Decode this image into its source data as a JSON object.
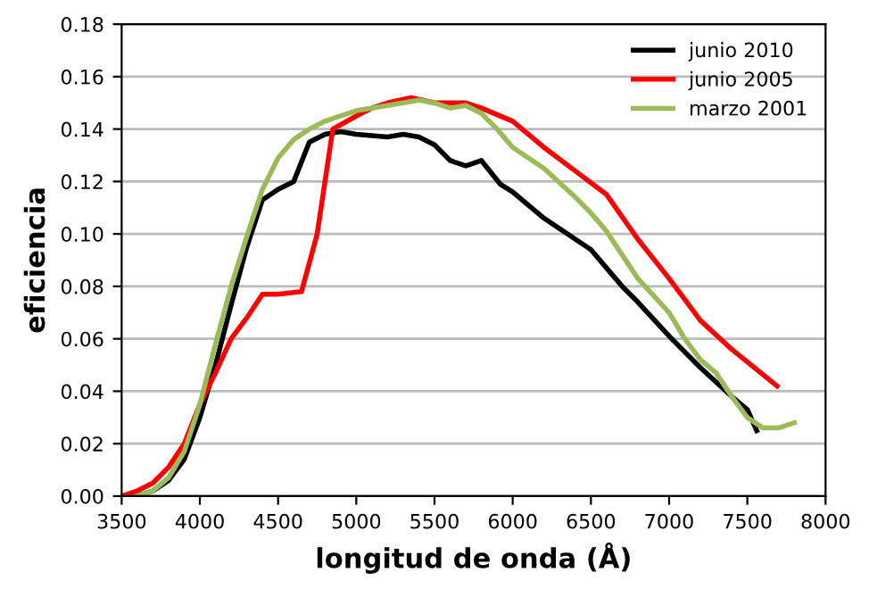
{
  "chart_data": {
    "type": "line",
    "xlabel": "longitud de onda (Å)",
    "ylabel": "eficiencia",
    "xlim": [
      3500,
      8000
    ],
    "xticks": [
      3500,
      4000,
      4500,
      5000,
      5500,
      6000,
      6500,
      7000,
      7500,
      8000
    ],
    "ylim": [
      0,
      0.18
    ],
    "yticks": [
      {
        "value": 0,
        "label": "0.00"
      },
      {
        "value": 0.02,
        "label": "0.02"
      },
      {
        "value": 0.04,
        "label": "0.04"
      },
      {
        "value": 0.06,
        "label": "0.06"
      },
      {
        "value": 0.08,
        "label": "0.08"
      },
      {
        "value": 0.1,
        "label": "0.10"
      },
      {
        "value": 0.12,
        "label": "0.12"
      },
      {
        "value": 0.14,
        "label": "0.14"
      },
      {
        "value": 0.16,
        "label": "0.16"
      },
      {
        "value": 0.18,
        "label": "0.18"
      }
    ],
    "grid": "y",
    "legend": "top right",
    "marker": "none",
    "line_style": "solid",
    "series": [
      {
        "name": "junio 2010",
        "color": "#000000",
        "x": [
          3600,
          3700,
          3800,
          3900,
          4000,
          4100,
          4200,
          4300,
          4400,
          4500,
          4600,
          4700,
          4800,
          4900,
          5000,
          5200,
          5300,
          5400,
          5500,
          5600,
          5700,
          5800,
          5920,
          6000,
          6200,
          6400,
          6500,
          6600,
          6700,
          6800,
          7000,
          7200,
          7400,
          7500,
          7560
        ],
        "values": [
          0.0,
          0.002,
          0.006,
          0.014,
          0.03,
          0.05,
          0.073,
          0.095,
          0.113,
          0.117,
          0.12,
          0.135,
          0.138,
          0.139,
          0.138,
          0.137,
          0.138,
          0.137,
          0.134,
          0.128,
          0.126,
          0.128,
          0.119,
          0.116,
          0.106,
          0.098,
          0.094,
          0.087,
          0.08,
          0.074,
          0.061,
          0.049,
          0.038,
          0.033,
          0.025
        ]
      },
      {
        "name": "junio 2005",
        "color": "#ff0000",
        "x": [
          3500,
          3600,
          3700,
          3800,
          3900,
          4000,
          4100,
          4200,
          4300,
          4400,
          4500,
          4650,
          4750,
          4850,
          5000,
          5100,
          5200,
          5350,
          5500,
          5700,
          5800,
          6000,
          6200,
          6400,
          6600,
          6800,
          7000,
          7200,
          7400,
          7690
        ],
        "values": [
          0.0,
          0.002,
          0.005,
          0.011,
          0.02,
          0.035,
          0.047,
          0.06,
          0.068,
          0.077,
          0.077,
          0.078,
          0.1,
          0.14,
          0.145,
          0.148,
          0.15,
          0.152,
          0.15,
          0.15,
          0.148,
          0.143,
          0.133,
          0.124,
          0.115,
          0.098,
          0.083,
          0.067,
          0.056,
          0.042
        ]
      },
      {
        "name": "marzo 2001",
        "color": "#9bbb59",
        "x": [
          3600,
          3700,
          3800,
          3900,
          4000,
          4100,
          4200,
          4300,
          4400,
          4500,
          4600,
          4700,
          4800,
          4900,
          5000,
          5200,
          5400,
          5500,
          5600,
          5700,
          5800,
          5900,
          6000,
          6200,
          6400,
          6500,
          6600,
          6800,
          7000,
          7100,
          7200,
          7300,
          7400,
          7500,
          7600,
          7700,
          7800
        ],
        "values": [
          0.0,
          0.002,
          0.007,
          0.017,
          0.035,
          0.058,
          0.08,
          0.099,
          0.117,
          0.129,
          0.136,
          0.14,
          0.143,
          0.145,
          0.147,
          0.149,
          0.151,
          0.15,
          0.148,
          0.149,
          0.146,
          0.14,
          0.133,
          0.125,
          0.114,
          0.108,
          0.101,
          0.083,
          0.07,
          0.06,
          0.052,
          0.047,
          0.038,
          0.03,
          0.026,
          0.026,
          0.028
        ]
      }
    ]
  }
}
